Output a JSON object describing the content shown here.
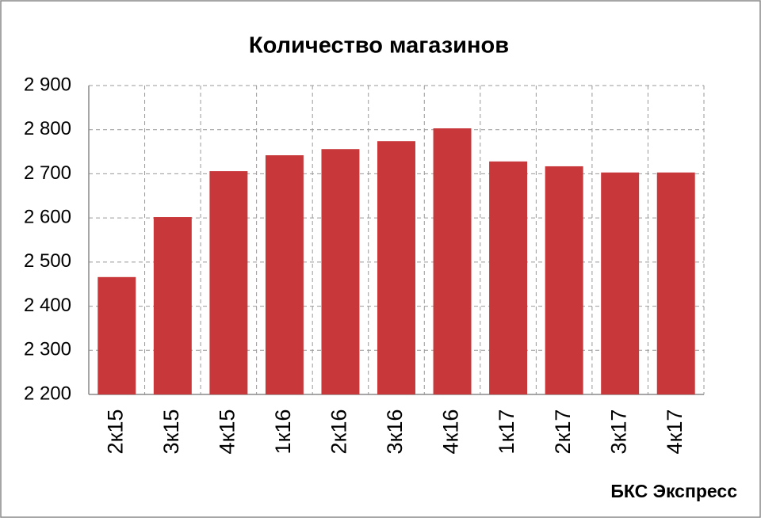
{
  "chart_data": {
    "type": "bar",
    "title": "Количество магазинов",
    "source": "БКС Экспресс",
    "categories": [
      "2к15",
      "3к15",
      "4к15",
      "1к16",
      "2к16",
      "3к16",
      "4к16",
      "1к17",
      "2к17",
      "3к17",
      "4к17"
    ],
    "values": [
      2466,
      2602,
      2706,
      2742,
      2756,
      2774,
      2803,
      2728,
      2717,
      2703,
      2703
    ],
    "color": "#c8383a",
    "ylim": [
      2200,
      2900
    ],
    "yticks": [
      {
        "value": 2200,
        "label": "2 200"
      },
      {
        "value": 2300,
        "label": "2 300"
      },
      {
        "value": 2400,
        "label": "2 400"
      },
      {
        "value": 2500,
        "label": "2 500"
      },
      {
        "value": 2600,
        "label": "2 600"
      },
      {
        "value": 2700,
        "label": "2 700"
      },
      {
        "value": 2800,
        "label": "2 800"
      },
      {
        "value": 2900,
        "label": "2 900"
      }
    ],
    "grid": true
  }
}
